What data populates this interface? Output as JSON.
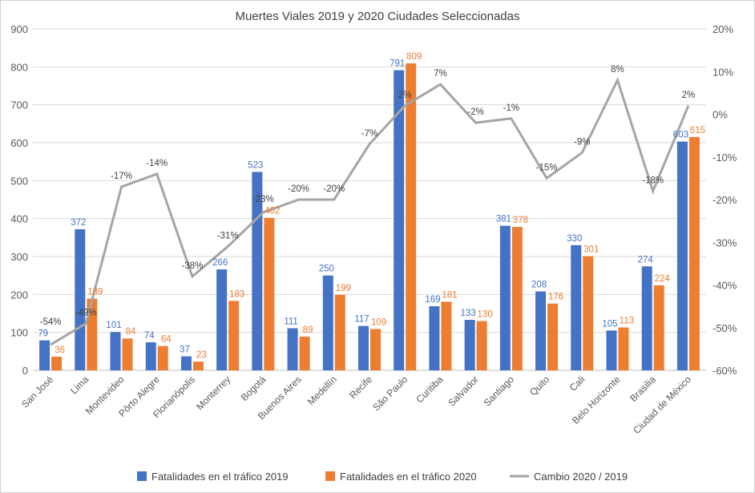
{
  "chart_data": {
    "type": "bar",
    "title": "Muertes Viales 2019 y 2020 Ciudades Seleccionadas",
    "categories": [
      "San José",
      "Lima",
      "Montevideo",
      "Pôrto Alegre",
      "Florianópolis",
      "Monterrey",
      "Bogotá",
      "Buenos Aires",
      "Medellín",
      "Recife",
      "São Paulo",
      "Curitiba",
      "Salvador",
      "Santiago",
      "Quito",
      "Cali",
      "Belo Horizonte",
      "Brasilia",
      "Ciudad de México"
    ],
    "series": [
      {
        "name": "Fatalidades en el tráfico 2019",
        "type": "bar",
        "axis": "left",
        "color": "#4472C4",
        "values": [
          79,
          372,
          101,
          74,
          37,
          266,
          523,
          111,
          250,
          117,
          791,
          169,
          133,
          381,
          208,
          330,
          105,
          274,
          603
        ]
      },
      {
        "name": "Fatalidades en el tráfico 2020",
        "type": "bar",
        "axis": "left",
        "color": "#ED7D31",
        "values": [
          36,
          189,
          84,
          64,
          23,
          183,
          402,
          89,
          199,
          109,
          809,
          181,
          130,
          378,
          176,
          301,
          113,
          224,
          615
        ]
      },
      {
        "name": "Cambio 2020 / 2019",
        "type": "line",
        "axis": "right",
        "color": "#A5A5A5",
        "values": [
          -54,
          -49,
          -17,
          -14,
          -38,
          -31,
          -23,
          -20,
          -20,
          -7,
          2,
          7,
          -2,
          -1,
          -15,
          -9,
          8,
          -18,
          2
        ]
      }
    ],
    "ylim": [
      0,
      900
    ],
    "yticks": [
      0,
      100,
      200,
      300,
      400,
      500,
      600,
      700,
      800,
      900
    ],
    "y2lim": [
      -60,
      20
    ],
    "y2ticks": [
      "-60%",
      "-50%",
      "-40%",
      "-30%",
      "-20%",
      "-10%",
      "0%",
      "10%",
      "20%"
    ],
    "grid": true,
    "legend": "bottom"
  }
}
